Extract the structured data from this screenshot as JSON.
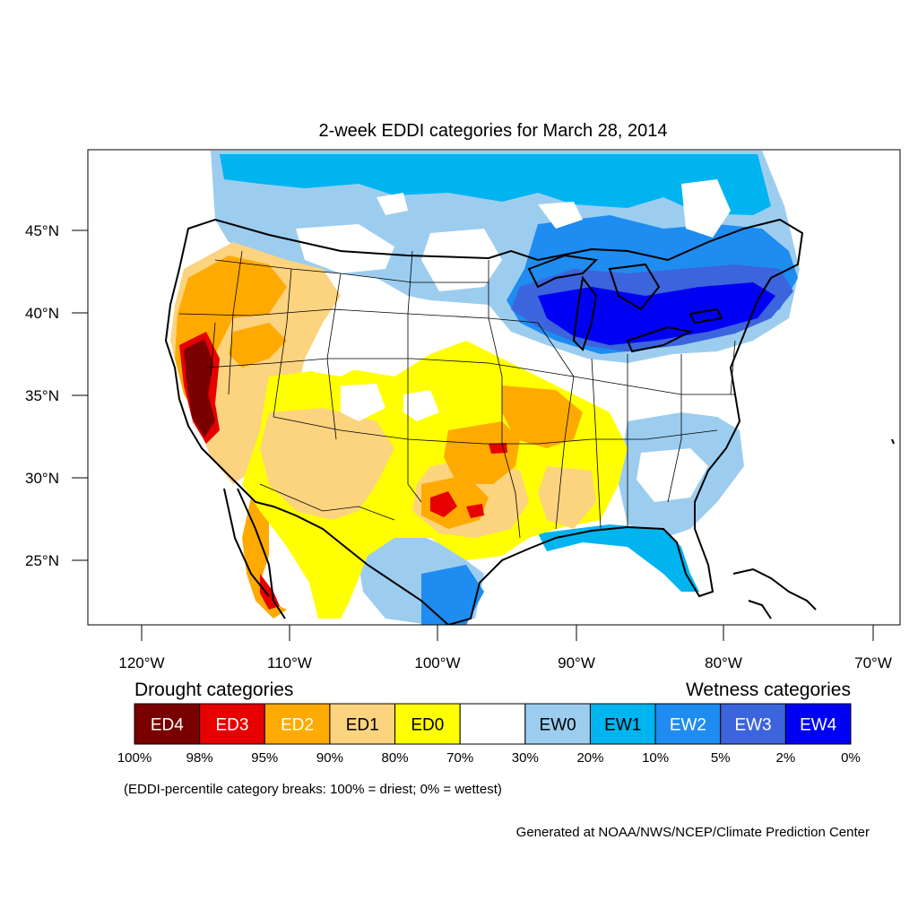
{
  "title": "2-week EDDI categories for March 28, 2014",
  "axes": {
    "lon_ticks": [
      "120°W",
      "110°W",
      "100°W",
      "90°W",
      "80°W",
      "70°W"
    ],
    "lat_ticks": [
      "45°N",
      "40°N",
      "35°N",
      "30°N",
      "25°N"
    ]
  },
  "legend": {
    "drought_title": "Drought categories",
    "wetness_title": "Wetness categories",
    "categories": [
      {
        "label": "ED4",
        "color": "#7a0000",
        "text_color": "#ffffff"
      },
      {
        "label": "ED3",
        "color": "#e60000",
        "text_color": "#ffffff"
      },
      {
        "label": "ED2",
        "color": "#ffaa00",
        "text_color": "#ffffff"
      },
      {
        "label": "ED1",
        "color": "#fcd37f",
        "text_color": "#000000"
      },
      {
        "label": "ED0",
        "color": "#ffff00",
        "text_color": "#000000"
      },
      {
        "label": "",
        "color": "#ffffff",
        "text_color": "#000000"
      },
      {
        "label": "EW0",
        "color": "#9ccdef",
        "text_color": "#000000"
      },
      {
        "label": "EW1",
        "color": "#00b4f0",
        "text_color": "#000000"
      },
      {
        "label": "EW2",
        "color": "#1e8cf0",
        "text_color": "#ffffff"
      },
      {
        "label": "EW3",
        "color": "#3c64dc",
        "text_color": "#ffffff"
      },
      {
        "label": "EW4",
        "color": "#0000f5",
        "text_color": "#ffffff"
      }
    ],
    "breaks": [
      "100%",
      "98%",
      "95%",
      "90%",
      "80%",
      "70%",
      "30%",
      "20%",
      "10%",
      "5%",
      "2%",
      "0%"
    ],
    "note": "(EDDI-percentile category breaks: 100% = driest; 0% = wettest)"
  },
  "credit": "Generated at NOAA/NWS/NCEP/Climate Prediction Center",
  "colors": {
    "background": "#ffffff",
    "outline": "#000000",
    "state_lines": "#000000"
  }
}
